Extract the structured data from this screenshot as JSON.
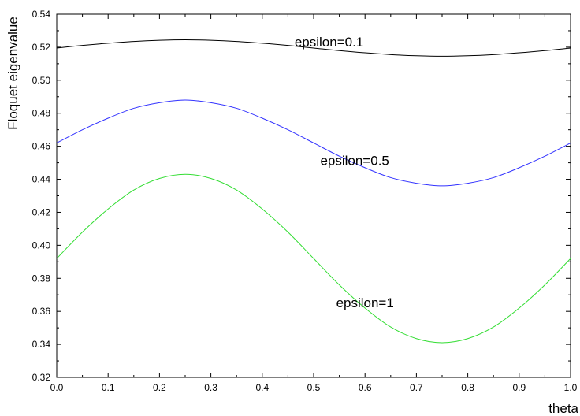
{
  "chart_data": {
    "type": "line",
    "title": "",
    "xlabel": "theta",
    "ylabel": "Floquet eigenvalue",
    "xlim": [
      0.0,
      1.0
    ],
    "ylim": [
      0.32,
      0.54
    ],
    "grid": false,
    "x_ticks": [
      "0.0",
      "0.1",
      "0.2",
      "0.3",
      "0.4",
      "0.5",
      "0.6",
      "0.7",
      "0.8",
      "0.9",
      "1.0"
    ],
    "y_ticks": [
      "0.32",
      "0.34",
      "0.36",
      "0.38",
      "0.40",
      "0.42",
      "0.44",
      "0.46",
      "0.48",
      "0.50",
      "0.52",
      "0.54"
    ],
    "series": [
      {
        "label": "epsilon=0.1",
        "color": "#000000",
        "x": [
          0.0,
          0.05,
          0.1,
          0.15,
          0.2,
          0.25,
          0.3,
          0.35,
          0.4,
          0.45,
          0.5,
          0.55,
          0.6,
          0.65,
          0.7,
          0.75,
          0.8,
          0.85,
          0.9,
          0.95,
          1.0
        ],
        "y": [
          0.5195,
          0.5211,
          0.5224,
          0.5235,
          0.5242,
          0.5245,
          0.5242,
          0.5235,
          0.5224,
          0.5211,
          0.5195,
          0.5179,
          0.5166,
          0.5155,
          0.5148,
          0.5145,
          0.5148,
          0.5155,
          0.5166,
          0.5179,
          0.5195
        ]
      },
      {
        "label": "epsilon=0.5",
        "color": "#3333ff",
        "x": [
          0.0,
          0.05,
          0.1,
          0.15,
          0.2,
          0.25,
          0.3,
          0.35,
          0.4,
          0.45,
          0.5,
          0.55,
          0.6,
          0.65,
          0.7,
          0.75,
          0.8,
          0.85,
          0.9,
          0.95,
          1.0
        ],
        "y": [
          0.462,
          0.47,
          0.477,
          0.483,
          0.4864,
          0.488,
          0.4864,
          0.483,
          0.477,
          0.47,
          0.462,
          0.454,
          0.447,
          0.441,
          0.4376,
          0.436,
          0.4376,
          0.441,
          0.447,
          0.454,
          0.462
        ]
      },
      {
        "label": "epsilon=1",
        "color": "#33dd33",
        "x": [
          0.0,
          0.05,
          0.1,
          0.15,
          0.2,
          0.25,
          0.3,
          0.35,
          0.4,
          0.45,
          0.5,
          0.55,
          0.6,
          0.65,
          0.7,
          0.75,
          0.8,
          0.85,
          0.9,
          0.95,
          1.0
        ],
        "y": [
          0.392,
          0.408,
          0.422,
          0.4335,
          0.4405,
          0.443,
          0.4405,
          0.4335,
          0.422,
          0.408,
          0.392,
          0.376,
          0.362,
          0.3505,
          0.3435,
          0.341,
          0.3435,
          0.3505,
          0.362,
          0.376,
          0.392
        ]
      }
    ],
    "annotations": [
      {
        "text": "epsilon=0.1",
        "x": 0.53,
        "y": 0.5205
      },
      {
        "text": "epsilon=0.5",
        "x": 0.58,
        "y": 0.4485
      },
      {
        "text": "epsilon=1",
        "x": 0.6,
        "y": 0.3625
      }
    ]
  }
}
